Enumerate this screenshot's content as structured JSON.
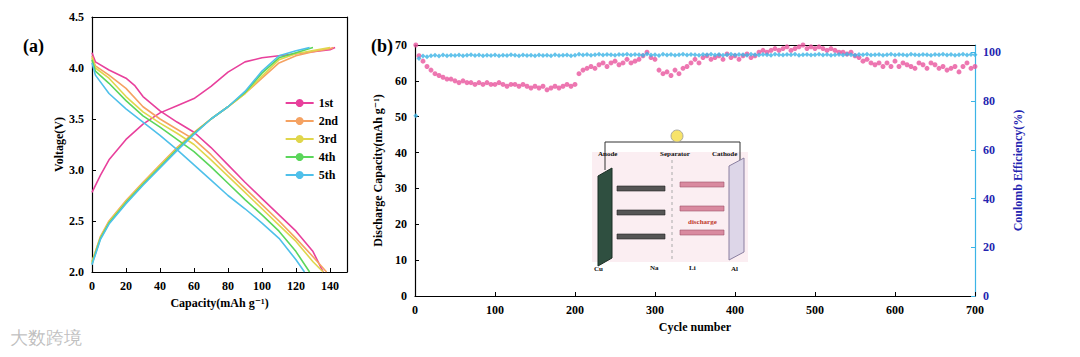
{
  "chart_data": [
    {
      "type": "line",
      "title": "(a)",
      "x_label": "Capacity(mAh g⁻¹)",
      "y_label": "Voltage(V)",
      "xlim": [
        0,
        150
      ],
      "xticks": [
        0,
        20,
        40,
        60,
        80,
        100,
        120,
        140
      ],
      "ylim": [
        2.0,
        4.5
      ],
      "yticks": [
        {
          "value": 2.0,
          "label": "2.0"
        },
        2.5,
        {
          "value": 3.0,
          "label": "3.0"
        },
        3.5,
        {
          "value": 4.0,
          "label": "4.0"
        },
        4.5
      ],
      "grid": false,
      "legend": "upper right",
      "series": [
        {
          "name": "1st",
          "color": "#e8409c",
          "x": [
            0,
            5,
            10,
            20,
            30,
            40,
            50,
            60,
            70,
            80,
            90,
            100,
            110,
            120,
            130,
            140,
            143,
            null,
            0,
            2,
            10,
            20,
            25,
            30,
            40,
            50,
            60,
            70,
            80,
            90,
            100,
            110,
            120,
            130,
            136
          ],
          "values": [
            2.78,
            2.95,
            3.1,
            3.3,
            3.45,
            3.56,
            3.63,
            3.7,
            3.82,
            3.96,
            4.06,
            4.1,
            4.12,
            4.14,
            4.16,
            4.18,
            4.2,
            null,
            4.15,
            4.06,
            3.98,
            3.9,
            3.83,
            3.72,
            3.58,
            3.47,
            3.37,
            3.22,
            3.05,
            2.88,
            2.72,
            2.56,
            2.4,
            2.2,
            2.0
          ]
        },
        {
          "name": "2nd",
          "color": "#f5a262",
          "x": [
            0,
            5,
            10,
            20,
            30,
            40,
            50,
            60,
            70,
            80,
            90,
            100,
            110,
            120,
            130,
            140,
            142,
            null,
            0,
            2,
            10,
            20,
            30,
            40,
            50,
            60,
            70,
            80,
            90,
            100,
            110,
            120,
            130,
            138
          ],
          "values": [
            2.1,
            2.35,
            2.5,
            2.7,
            2.88,
            3.05,
            3.22,
            3.37,
            3.5,
            3.62,
            3.75,
            3.9,
            4.05,
            4.12,
            4.16,
            4.19,
            4.2,
            null,
            4.12,
            4.02,
            3.93,
            3.8,
            3.62,
            3.5,
            3.4,
            3.3,
            3.15,
            2.98,
            2.82,
            2.66,
            2.5,
            2.33,
            2.15,
            2.0
          ]
        },
        {
          "name": "3rd",
          "color": "#e0d64c",
          "x": [
            0,
            5,
            10,
            20,
            30,
            40,
            50,
            60,
            70,
            80,
            90,
            100,
            110,
            120,
            130,
            140,
            null,
            0,
            2,
            10,
            20,
            30,
            40,
            50,
            60,
            70,
            80,
            90,
            100,
            110,
            120,
            130,
            136
          ],
          "values": [
            2.1,
            2.34,
            2.49,
            2.69,
            2.87,
            3.04,
            3.21,
            3.36,
            3.5,
            3.62,
            3.75,
            3.92,
            4.08,
            4.14,
            4.17,
            4.2,
            null,
            4.1,
            4.0,
            3.9,
            3.72,
            3.57,
            3.46,
            3.36,
            3.25,
            3.1,
            2.94,
            2.78,
            2.62,
            2.46,
            2.3,
            2.1,
            2.0
          ]
        },
        {
          "name": "4th",
          "color": "#5bd65b",
          "x": [
            0,
            5,
            10,
            20,
            30,
            40,
            50,
            60,
            70,
            80,
            90,
            100,
            110,
            120,
            130,
            null,
            0,
            2,
            10,
            20,
            30,
            40,
            50,
            60,
            70,
            80,
            90,
            100,
            110,
            120,
            128
          ],
          "values": [
            2.08,
            2.33,
            2.48,
            2.68,
            2.86,
            3.03,
            3.2,
            3.36,
            3.5,
            3.62,
            3.76,
            3.95,
            4.1,
            4.15,
            4.2,
            null,
            4.08,
            3.97,
            3.85,
            3.68,
            3.53,
            3.42,
            3.3,
            3.18,
            3.03,
            2.87,
            2.71,
            2.56,
            2.4,
            2.2,
            2.0
          ]
        },
        {
          "name": "5th",
          "color": "#4fc0ea",
          "x": [
            0,
            5,
            10,
            20,
            30,
            40,
            50,
            60,
            70,
            80,
            90,
            100,
            110,
            120,
            128,
            null,
            0,
            2,
            10,
            20,
            30,
            40,
            50,
            60,
            70,
            80,
            90,
            100,
            110,
            120,
            125
          ],
          "values": [
            2.07,
            2.32,
            2.47,
            2.67,
            2.85,
            3.02,
            3.19,
            3.35,
            3.5,
            3.62,
            3.77,
            3.97,
            4.12,
            4.17,
            4.2,
            null,
            4.05,
            3.93,
            3.75,
            3.6,
            3.47,
            3.34,
            3.2,
            3.05,
            2.9,
            2.75,
            2.62,
            2.48,
            2.33,
            2.12,
            2.0
          ]
        }
      ]
    },
    {
      "type": "scatter",
      "title": "(b)",
      "x_label": "Cycle number",
      "y_label": "Discharge Capacity(mAh g⁻¹)",
      "y2_label": "Coulomb Efficiency(%)",
      "xlim": [
        0,
        700
      ],
      "xticks": [
        0,
        100,
        200,
        300,
        400,
        500,
        600,
        700
      ],
      "ylim": [
        0,
        70
      ],
      "yticks": [
        0,
        10,
        20,
        30,
        40,
        50,
        60,
        70
      ],
      "y2lim": [
        0,
        103
      ],
      "y2ticks": [
        0,
        20,
        40,
        60,
        80,
        100
      ],
      "grid": false,
      "annotations": [
        "Anode",
        "Separator",
        "Cathode",
        "Cu",
        "Na",
        "Li",
        "Al",
        "discharge"
      ],
      "series": [
        {
          "color": "#e8559e",
          "marker": "circle",
          "x": [
            1,
            5,
            10,
            15,
            20,
            25,
            30,
            35,
            40,
            45,
            50,
            55,
            60,
            65,
            70,
            75,
            80,
            85,
            90,
            95,
            100,
            105,
            110,
            115,
            120,
            125,
            130,
            135,
            140,
            145,
            150,
            155,
            160,
            165,
            170,
            175,
            180,
            185,
            190,
            195,
            200,
            205,
            210,
            215,
            220,
            225,
            230,
            235,
            240,
            245,
            250,
            255,
            260,
            265,
            270,
            275,
            280,
            285,
            290,
            295,
            300,
            305,
            310,
            315,
            320,
            325,
            330,
            335,
            340,
            345,
            350,
            355,
            360,
            365,
            370,
            375,
            380,
            385,
            390,
            395,
            400,
            405,
            410,
            415,
            420,
            425,
            430,
            435,
            440,
            445,
            450,
            455,
            460,
            465,
            470,
            475,
            480,
            485,
            490,
            495,
            500,
            505,
            510,
            515,
            520,
            525,
            530,
            535,
            540,
            545,
            550,
            555,
            560,
            565,
            570,
            575,
            580,
            585,
            590,
            595,
            600,
            605,
            610,
            615,
            620,
            625,
            630,
            635,
            640,
            645,
            650,
            655,
            660,
            665,
            670,
            675,
            680,
            685,
            690,
            695,
            700
          ],
          "values": [
            70,
            67,
            65.5,
            64,
            63,
            62,
            61.5,
            61,
            60.5,
            60.5,
            60,
            59.5,
            60,
            59.5,
            59.5,
            59,
            59.5,
            59,
            59.5,
            59,
            59,
            59.5,
            59,
            58.5,
            59,
            59,
            58.5,
            59,
            58.5,
            58,
            58.5,
            58,
            58.5,
            57.5,
            58,
            58.5,
            58,
            58.5,
            59,
            58.5,
            59,
            62,
            63,
            63.5,
            64,
            63.5,
            64.5,
            65,
            64,
            65,
            65.5,
            64.5,
            65,
            66,
            65,
            65.5,
            66,
            67,
            68,
            66.5,
            66,
            63,
            62,
            62.5,
            61.5,
            63,
            62,
            63.5,
            64,
            65,
            66,
            65,
            66.5,
            67,
            66,
            66.5,
            67,
            66,
            67.5,
            66.5,
            67,
            66,
            67,
            67.5,
            66.5,
            67,
            68,
            68.5,
            68,
            68.5,
            69,
            68.5,
            69,
            69.5,
            68.5,
            69,
            69.5,
            70,
            69,
            69.5,
            69,
            69.5,
            69,
            68.5,
            69,
            68.5,
            68,
            68,
            67.5,
            68,
            67,
            66.5,
            65.5,
            66,
            65,
            64.5,
            65,
            64,
            65,
            64,
            65.5,
            64,
            65,
            64.5,
            64,
            63.5,
            65,
            64.5,
            63.5,
            65,
            64.5,
            63.5,
            64,
            63,
            63.5,
            64,
            62.5,
            64,
            65,
            63.5,
            64
          ]
        },
        {
          "color": "#3cb4e6",
          "marker": "diamond",
          "axis": "y2",
          "x": [
            1,
            5,
            10,
            15,
            20,
            25,
            30,
            35,
            40,
            45,
            50,
            55,
            60,
            65,
            70,
            75,
            80,
            85,
            90,
            95,
            100,
            105,
            110,
            115,
            120,
            125,
            130,
            135,
            140,
            145,
            150,
            155,
            160,
            165,
            170,
            175,
            180,
            185,
            190,
            195,
            200,
            205,
            210,
            215,
            220,
            225,
            230,
            235,
            240,
            245,
            250,
            255,
            260,
            265,
            270,
            275,
            280,
            285,
            290,
            295,
            300,
            305,
            310,
            315,
            320,
            325,
            330,
            335,
            340,
            345,
            350,
            355,
            360,
            365,
            370,
            375,
            380,
            385,
            390,
            395,
            400,
            405,
            410,
            415,
            420,
            425,
            430,
            435,
            440,
            445,
            450,
            455,
            460,
            465,
            470,
            475,
            480,
            485,
            490,
            495,
            500,
            505,
            510,
            515,
            520,
            525,
            530,
            535,
            540,
            545,
            550,
            555,
            560,
            565,
            570,
            575,
            580,
            585,
            590,
            595,
            600,
            605,
            610,
            615,
            620,
            625,
            630,
            635,
            640,
            645,
            650,
            655,
            660,
            665,
            670,
            675,
            680,
            685,
            690,
            695,
            700
          ],
          "values": [
            74,
            97.5,
            98.5,
            98.2,
            98.6,
            98.8,
            98.5,
            98.9,
            98.6,
            98.8,
            98.7,
            98.9,
            98.6,
            98.8,
            99,
            98.7,
            98.9,
            98.6,
            98.8,
            98.7,
            98.9,
            98.6,
            98.8,
            98.7,
            99,
            98.8,
            98.6,
            98.9,
            98.7,
            98.8,
            98.6,
            98.9,
            98.7,
            98.8,
            98.6,
            99,
            98.7,
            98.8,
            98.9,
            98.6,
            98.8,
            99.2,
            98.9,
            99.1,
            98.8,
            99,
            99.2,
            98.9,
            99.1,
            99,
            98.8,
            99.1,
            99,
            99.2,
            98.9,
            99.1,
            99,
            98.8,
            99.3,
            98.9,
            99,
            98.7,
            99.2,
            98.9,
            99.1,
            98.8,
            99,
            99.2,
            98.9,
            99.1,
            99,
            98.8,
            99.1,
            99,
            99.2,
            98.9,
            99.1,
            98.8,
            99,
            99.2,
            98.9,
            99.1,
            99,
            98.8,
            99.2,
            99,
            98.9,
            99.1,
            99,
            98.8,
            99.2,
            99,
            98.9,
            99.1,
            99,
            99.2,
            98.8,
            99,
            99.1,
            98.9,
            99,
            99.2,
            98.9,
            99.1,
            98.8,
            99,
            99.1,
            98.9,
            99.2,
            99,
            98.8,
            99.1,
            99,
            99.2,
            98.9,
            99,
            99.1,
            98.8,
            99,
            99.2,
            98.9,
            99.1,
            99,
            98.8,
            99.2,
            99,
            98.9,
            99.1,
            99,
            98.8,
            99.1,
            99,
            99.2,
            98.9,
            99.1,
            98.8,
            99,
            99.2,
            98.9,
            99.1,
            99
          ]
        }
      ]
    }
  ],
  "watermark": "大数跨境"
}
